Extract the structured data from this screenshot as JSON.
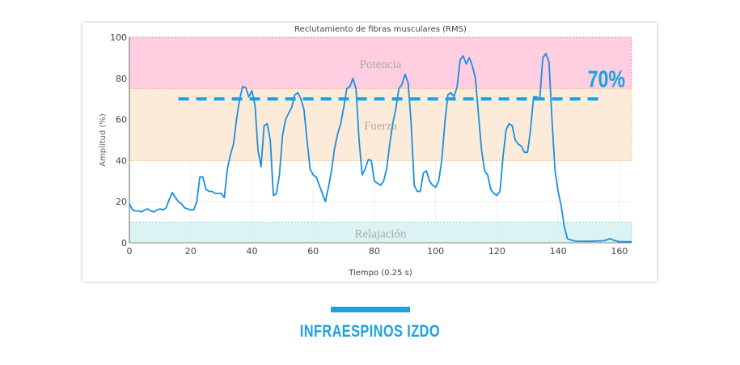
{
  "chart_data": {
    "type": "line",
    "title": "Reclutamiento de fibras musculares (RMS)",
    "xlabel": "Tiempo (0.25 s)",
    "ylabel": "Amplitud (%)",
    "xlim": [
      0,
      164
    ],
    "ylim": [
      0,
      100
    ],
    "xticks": [
      "0",
      "20",
      "40",
      "60",
      "80",
      "100",
      "120",
      "140",
      "160"
    ],
    "yticks": [
      "0",
      "20",
      "40",
      "60",
      "80",
      "100"
    ],
    "grid": true,
    "line_color": "#1a8fe0",
    "bands": [
      {
        "label": "Potencia",
        "from": 75,
        "to": 100,
        "color": "#ffc6da"
      },
      {
        "label": "Fuerza",
        "from": 40,
        "to": 75,
        "color": "#fde8d3"
      },
      {
        "label": "Relajación",
        "from": 0,
        "to": 10,
        "color": "#d6f1f1"
      }
    ],
    "threshold": {
      "value": 70,
      "label": "70%",
      "x_from": 16,
      "x_to": 155,
      "color": "#12a3e8"
    },
    "x": [
      0,
      1,
      2,
      3,
      4,
      5,
      6,
      7,
      8,
      9,
      10,
      11,
      12,
      13,
      14,
      15,
      16,
      17,
      18,
      19,
      20,
      21,
      22,
      23,
      24,
      25,
      26,
      27,
      28,
      29,
      30,
      31,
      32,
      33,
      34,
      35,
      36,
      37,
      38,
      39,
      40,
      41,
      42,
      43,
      44,
      45,
      46,
      47,
      48,
      49,
      50,
      51,
      52,
      53,
      54,
      55,
      56,
      57,
      58,
      59,
      60,
      61,
      62,
      63,
      64,
      65,
      66,
      67,
      68,
      69,
      70,
      71,
      72,
      73,
      74,
      75,
      76,
      77,
      78,
      79,
      80,
      81,
      82,
      83,
      84,
      85,
      86,
      87,
      88,
      89,
      90,
      91,
      92,
      93,
      94,
      95,
      96,
      97,
      98,
      99,
      100,
      101,
      102,
      103,
      104,
      105,
      106,
      107,
      108,
      109,
      110,
      111,
      112,
      113,
      114,
      115,
      116,
      117,
      118,
      119,
      120,
      121,
      122,
      123,
      124,
      125,
      126,
      127,
      128,
      129,
      130,
      131,
      132,
      133,
      134,
      135,
      136,
      137,
      138,
      139,
      140,
      141,
      142,
      143,
      144,
      145,
      146,
      150,
      155,
      157,
      158,
      160,
      164
    ],
    "y": [
      19,
      16,
      15.5,
      15.5,
      15,
      16,
      16.5,
      15.5,
      15,
      16,
      16.5,
      16,
      17,
      21,
      24.5,
      22,
      20,
      19,
      17,
      16.5,
      16,
      16,
      20,
      32,
      32,
      26,
      25,
      25,
      24,
      24,
      24,
      22,
      36,
      43,
      48,
      60,
      70,
      76,
      75.5,
      71,
      74,
      67,
      45,
      37,
      57,
      58,
      50,
      23,
      24,
      33,
      52,
      60,
      63,
      66,
      72,
      73,
      70,
      65,
      50,
      36,
      33,
      32,
      28,
      24,
      20,
      27,
      35,
      46,
      53,
      58,
      66,
      75,
      76,
      80,
      75,
      50,
      33,
      36,
      40.5,
      40,
      30,
      29,
      28,
      30,
      36,
      48,
      58,
      65,
      75,
      77,
      82,
      78,
      58,
      28,
      25,
      25,
      34,
      35,
      30,
      28,
      27,
      30,
      40,
      58,
      72,
      73,
      71,
      76,
      89,
      91,
      87,
      90,
      86,
      80,
      62,
      45,
      35,
      33,
      26,
      24,
      23,
      25,
      42,
      55,
      58,
      57,
      50,
      48,
      47,
      44,
      44,
      55,
      71,
      71,
      70,
      90,
      92,
      88,
      60,
      35,
      25,
      18,
      8,
      2,
      1.5,
      1,
      0.8,
      0.7,
      1,
      2,
      1.3,
      0.5,
      0.5
    ]
  },
  "caption": "INFRAESPINOS IZDO",
  "caption_color": "#1da1e2"
}
